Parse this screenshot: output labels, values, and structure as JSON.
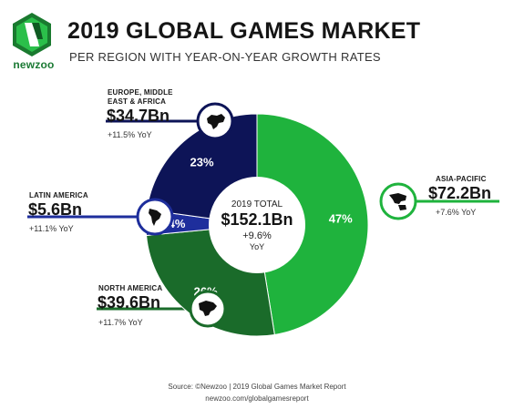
{
  "brand": {
    "name": "newzoo"
  },
  "header": {
    "title": "2019 GLOBAL GAMES MARKET",
    "subtitle": "PER REGION WITH YEAR-ON-YEAR GROWTH RATES"
  },
  "center": {
    "label": "2019 TOTAL",
    "value": "$152.1Bn",
    "growth": "+9.6%",
    "growth_unit": "YoY"
  },
  "regions": [
    {
      "name_line1": "EUROPE, MIDDLE",
      "name_line2": "EAST & AFRICA",
      "value": "$34.7Bn",
      "yoy": "+11.5% YoY",
      "pct_label": "23%",
      "map_icon": "europe-map-icon"
    },
    {
      "name_line1": "LATIN AMERICA",
      "name_line2": "",
      "value": "$5.6Bn",
      "yoy": "+11.1% YoY",
      "pct_label": "4%",
      "map_icon": "latin-america-map-icon"
    },
    {
      "name_line1": "NORTH AMERICA",
      "name_line2": "",
      "value": "$39.6Bn",
      "yoy": "+11.7% YoY",
      "pct_label": "26%",
      "map_icon": "north-america-map-icon"
    },
    {
      "name_line1": "ASIA-PACIFIC",
      "name_line2": "",
      "value": "$72.2Bn",
      "yoy": "+7.6% YoY",
      "pct_label": "47%",
      "map_icon": "asia-pacific-map-icon"
    }
  ],
  "footer": {
    "source": "Source: ©Newzoo | 2019 Global Games Market Report",
    "url": "newzoo.com/globalgamesreport"
  },
  "colors": {
    "europe": "#0d1457",
    "latin_america": "#1e2e9c",
    "north_america": "#1a6b2a",
    "asia_pacific": "#1fb33d"
  },
  "chart_data": {
    "type": "pie",
    "style": "donut",
    "title": "2019 GLOBAL GAMES MARKET",
    "subtitle": "PER REGION WITH YEAR-ON-YEAR GROWTH RATES",
    "unit": "Bn USD",
    "categories": [
      "Asia-Pacific",
      "North America",
      "Latin America",
      "Europe, Middle East & Africa"
    ],
    "values": [
      72.2,
      39.6,
      5.6,
      34.7
    ],
    "shares_pct": [
      47,
      26,
      4,
      23
    ],
    "yoy_growth_pct": [
      7.6,
      11.7,
      11.1,
      11.5
    ],
    "total": 152.1,
    "total_yoy_growth_pct": 9.6,
    "legend": "none"
  }
}
